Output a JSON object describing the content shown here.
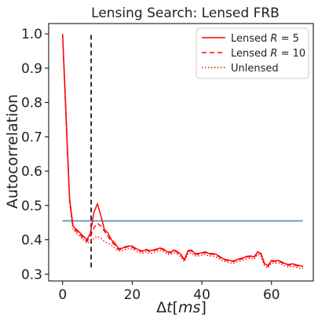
{
  "chart_data": {
    "type": "line",
    "title": "Lensing Search: Lensed FRB",
    "xlabel": "Δt[ms]",
    "ylabel": "Autocorrelation",
    "xlim": [
      -4,
      72
    ],
    "ylim": [
      0.28,
      1.03
    ],
    "xticks": [
      0,
      20,
      40,
      60
    ],
    "yticks": [
      0.3,
      0.4,
      0.5,
      0.6,
      0.7,
      0.8,
      0.9,
      1.0
    ],
    "ytick_labels": [
      "0.3",
      "0.4",
      "0.5",
      "0.6",
      "0.7",
      "0.8",
      "0.9",
      "1.0"
    ],
    "legend_position": "top-right",
    "legend": [
      {
        "label": "Lensed R = 5",
        "prefix": "Lensed ",
        "var": "R",
        "suffix": " = 5",
        "style": "solid"
      },
      {
        "label": "Lensed R = 10",
        "prefix": "Lensed ",
        "var": "R",
        "suffix": " = 10",
        "style": "dashed"
      },
      {
        "label": "Unlensed",
        "prefix": "Unlensed",
        "var": "",
        "suffix": "",
        "style": "dotted"
      }
    ],
    "x": [
      0,
      1,
      2,
      3,
      4,
      5,
      6,
      7,
      8,
      9,
      10,
      11,
      12,
      13,
      14,
      15,
      16,
      17,
      18,
      19,
      20,
      21,
      22,
      23,
      24,
      25,
      26,
      27,
      28,
      29,
      30,
      31,
      32,
      33,
      34,
      35,
      36,
      37,
      38,
      39,
      40,
      41,
      42,
      43,
      44,
      45,
      46,
      47,
      48,
      49,
      50,
      51,
      52,
      53,
      54,
      55,
      56,
      57,
      58,
      59,
      60,
      61,
      62,
      63,
      64,
      65,
      66,
      67,
      68,
      69
    ],
    "series": [
      {
        "name": "Lensed R = 5",
        "color": "#ff0000",
        "style": "solid",
        "values": [
          1.0,
          0.76,
          0.52,
          0.44,
          0.43,
          0.42,
          0.41,
          0.4,
          0.42,
          0.48,
          0.505,
          0.47,
          0.43,
          0.42,
          0.4,
          0.39,
          0.375,
          0.375,
          0.38,
          0.382,
          0.381,
          0.375,
          0.37,
          0.367,
          0.372,
          0.368,
          0.37,
          0.373,
          0.376,
          0.373,
          0.365,
          0.364,
          0.37,
          0.365,
          0.357,
          0.342,
          0.368,
          0.37,
          0.36,
          0.36,
          0.362,
          0.365,
          0.36,
          0.36,
          0.358,
          0.352,
          0.345,
          0.342,
          0.34,
          0.338,
          0.342,
          0.345,
          0.348,
          0.352,
          0.353,
          0.35,
          0.365,
          0.36,
          0.33,
          0.325,
          0.34,
          0.338,
          0.34,
          0.335,
          0.33,
          0.328,
          0.33,
          0.327,
          0.325,
          0.323
        ]
      },
      {
        "name": "Lensed R = 10",
        "color": "#ff0000",
        "style": "dashed",
        "values": [
          1.0,
          0.75,
          0.515,
          0.435,
          0.425,
          0.415,
          0.405,
          0.395,
          0.41,
          0.435,
          0.448,
          0.44,
          0.425,
          0.41,
          0.395,
          0.385,
          0.372,
          0.372,
          0.378,
          0.38,
          0.378,
          0.372,
          0.368,
          0.365,
          0.37,
          0.366,
          0.368,
          0.371,
          0.374,
          0.371,
          0.363,
          0.362,
          0.368,
          0.363,
          0.355,
          0.34,
          0.366,
          0.368,
          0.358,
          0.358,
          0.36,
          0.363,
          0.358,
          0.358,
          0.356,
          0.35,
          0.343,
          0.34,
          0.338,
          0.336,
          0.34,
          0.343,
          0.346,
          0.35,
          0.351,
          0.348,
          0.363,
          0.358,
          0.328,
          0.323,
          0.338,
          0.336,
          0.338,
          0.333,
          0.328,
          0.326,
          0.328,
          0.325,
          0.323,
          0.321
        ]
      },
      {
        "name": "Unlensed",
        "color": "#ff0000",
        "style": "dotted",
        "values": [
          1.0,
          0.74,
          0.51,
          0.43,
          0.42,
          0.41,
          0.4,
          0.39,
          0.395,
          0.405,
          0.41,
          0.405,
          0.395,
          0.39,
          0.385,
          0.375,
          0.368,
          0.368,
          0.372,
          0.375,
          0.372,
          0.368,
          0.362,
          0.36,
          0.365,
          0.36,
          0.362,
          0.366,
          0.37,
          0.366,
          0.358,
          0.357,
          0.362,
          0.358,
          0.35,
          0.336,
          0.36,
          0.362,
          0.353,
          0.353,
          0.355,
          0.358,
          0.353,
          0.353,
          0.35,
          0.345,
          0.338,
          0.335,
          0.333,
          0.331,
          0.335,
          0.338,
          0.341,
          0.345,
          0.346,
          0.343,
          0.358,
          0.353,
          0.323,
          0.318,
          0.333,
          0.331,
          0.333,
          0.328,
          0.323,
          0.321,
          0.323,
          0.32,
          0.318,
          0.316
        ]
      }
    ],
    "threshold": {
      "value": 0.455,
      "x_range": [
        0,
        69
      ],
      "color": "#4a8bad"
    },
    "marker_line": {
      "x": 8.2,
      "y_range": [
        0.32,
        1.0
      ],
      "color": "#000000",
      "style": "dashed"
    }
  }
}
